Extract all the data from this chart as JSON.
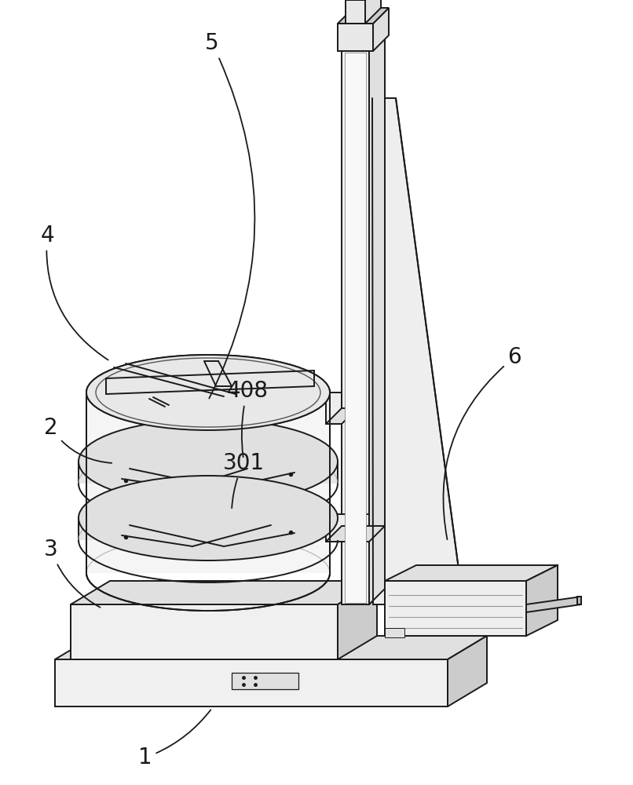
{
  "background_color": "#ffffff",
  "line_color": "#1a1a1a",
  "line_width": 1.4,
  "label_fontsize": 20,
  "face_light": "#f0f0f0",
  "face_mid": "#e0e0e0",
  "face_dark": "#cccccc",
  "face_darker": "#b8b8b8"
}
